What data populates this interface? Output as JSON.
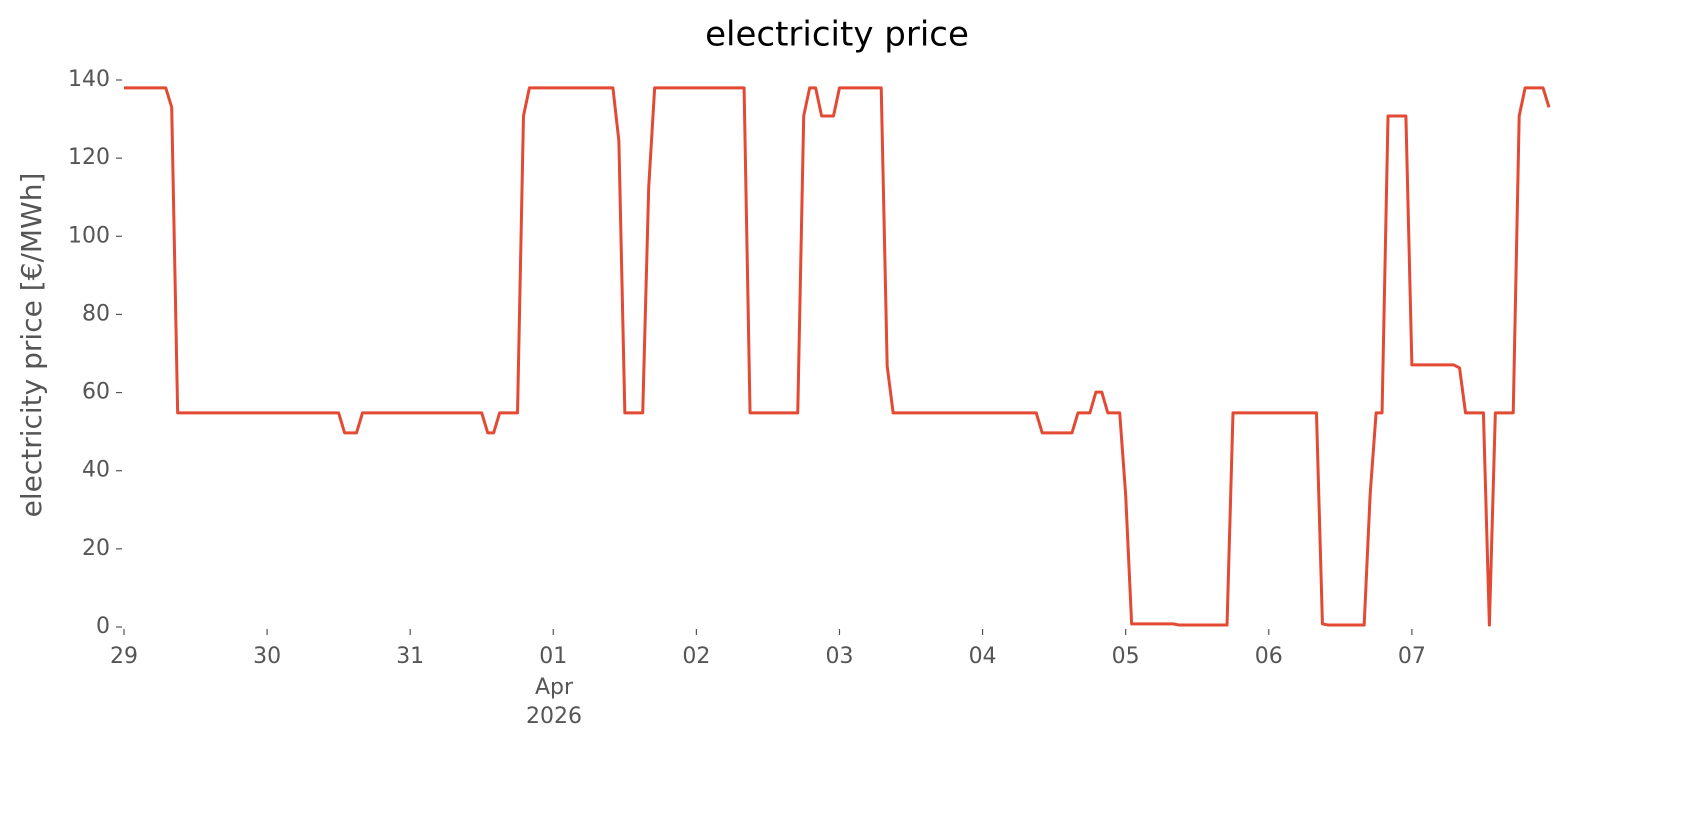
{
  "chart_data": {
    "type": "line",
    "title": "electricity price",
    "y_label": "electricity price [€/MWh]",
    "x_month_label": "Apr",
    "x_year_label": "2026",
    "x": [
      0,
      7,
      8,
      9,
      36,
      37,
      39,
      40,
      60,
      61,
      62,
      63,
      66,
      67,
      68,
      82,
      83,
      84,
      87,
      88,
      89,
      104,
      105,
      113,
      114,
      115,
      116,
      117,
      119,
      120,
      127,
      128,
      129,
      153,
      154,
      159,
      160,
      162,
      163,
      164,
      165,
      167,
      168,
      169,
      176,
      177,
      185,
      186,
      200,
      201,
      202,
      208,
      209,
      210,
      211,
      212,
      215,
      216,
      223,
      224,
      225,
      228,
      229,
      230,
      233,
      234,
      235,
      238,
      239
    ],
    "series": [
      {
        "name": "electricity price",
        "color": "#E24A33",
        "values": [
          138,
          138,
          133,
          54.8,
          54.8,
          49.7,
          49.7,
          54.8,
          54.8,
          49.7,
          49.7,
          54.8,
          54.8,
          130.8,
          138,
          138,
          124.4,
          54.8,
          54.8,
          112.4,
          138,
          138,
          54.8,
          54.8,
          130.8,
          138,
          138,
          130.8,
          130.8,
          138,
          138,
          66.8,
          54.8,
          54.8,
          49.7,
          49.7,
          54.8,
          54.8,
          60.1,
          60.1,
          54.8,
          54.8,
          33.8,
          0.8,
          0.8,
          0.5,
          0.5,
          54.8,
          54.8,
          0.8,
          0.5,
          0.5,
          33.8,
          54.8,
          54.8,
          130.8,
          130.8,
          67.1,
          67.1,
          66.3,
          54.8,
          54.8,
          0.5,
          54.8,
          54.8,
          130.8,
          138,
          138,
          133
        ]
      }
    ],
    "xlim": [
      0,
      239
    ],
    "xticks": [
      {
        "value": 0,
        "label": "29"
      },
      {
        "value": 24,
        "label": "30"
      },
      {
        "value": 48,
        "label": "31"
      },
      {
        "value": 72,
        "label": "01"
      },
      {
        "value": 96,
        "label": "02"
      },
      {
        "value": 120,
        "label": "03"
      },
      {
        "value": 144,
        "label": "04"
      },
      {
        "value": 168,
        "label": "05"
      },
      {
        "value": 192,
        "label": "06"
      },
      {
        "value": 216,
        "label": "07"
      }
    ],
    "ylim": [
      0,
      140
    ],
    "yticks": [
      0,
      20,
      40,
      60,
      80,
      100,
      120,
      140
    ],
    "grid": false
  }
}
